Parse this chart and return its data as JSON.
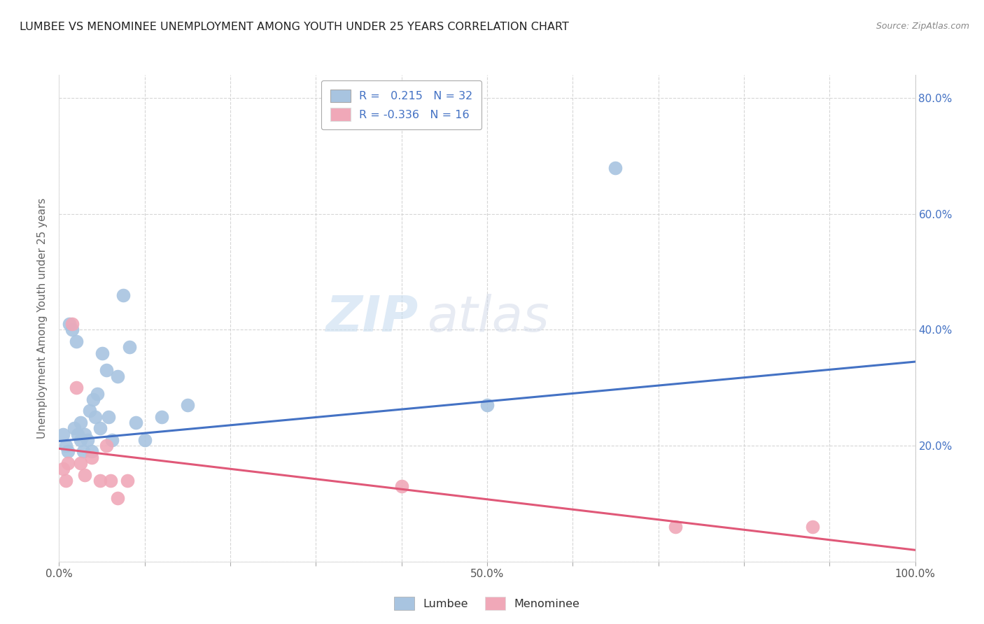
{
  "title": "LUMBEE VS MENOMINEE UNEMPLOYMENT AMONG YOUTH UNDER 25 YEARS CORRELATION CHART",
  "source": "Source: ZipAtlas.com",
  "ylabel": "Unemployment Among Youth under 25 years",
  "xlim": [
    0.0,
    1.0
  ],
  "ylim": [
    0.0,
    0.84
  ],
  "lumbee_R": 0.215,
  "lumbee_N": 32,
  "menominee_R": -0.336,
  "menominee_N": 16,
  "lumbee_color": "#a8c4e0",
  "menominee_color": "#f0a8b8",
  "lumbee_line_color": "#4472c4",
  "menominee_line_color": "#e05878",
  "watermark_zip": "ZIP",
  "watermark_atlas": "atlas",
  "lumbee_x": [
    0.005,
    0.008,
    0.01,
    0.012,
    0.015,
    0.018,
    0.02,
    0.022,
    0.025,
    0.025,
    0.028,
    0.03,
    0.033,
    0.036,
    0.038,
    0.04,
    0.042,
    0.045,
    0.048,
    0.05,
    0.055,
    0.058,
    0.062,
    0.068,
    0.075,
    0.082,
    0.09,
    0.1,
    0.12,
    0.15,
    0.5,
    0.65
  ],
  "lumbee_y": [
    0.22,
    0.2,
    0.19,
    0.41,
    0.4,
    0.23,
    0.38,
    0.22,
    0.21,
    0.24,
    0.19,
    0.22,
    0.21,
    0.26,
    0.19,
    0.28,
    0.25,
    0.29,
    0.23,
    0.36,
    0.33,
    0.25,
    0.21,
    0.32,
    0.46,
    0.37,
    0.24,
    0.21,
    0.25,
    0.27,
    0.27,
    0.68
  ],
  "menominee_x": [
    0.005,
    0.008,
    0.01,
    0.015,
    0.02,
    0.025,
    0.03,
    0.038,
    0.048,
    0.055,
    0.06,
    0.068,
    0.08,
    0.4,
    0.72,
    0.88
  ],
  "menominee_y": [
    0.16,
    0.14,
    0.17,
    0.41,
    0.3,
    0.17,
    0.15,
    0.18,
    0.14,
    0.2,
    0.14,
    0.11,
    0.14,
    0.13,
    0.06,
    0.06
  ],
  "background_color": "#ffffff",
  "grid_color": "#cccccc",
  "lumbee_line_x0": 0.0,
  "lumbee_line_x1": 1.0,
  "lumbee_line_y0": 0.208,
  "lumbee_line_y1": 0.345,
  "menominee_line_x0": 0.0,
  "menominee_line_x1": 1.0,
  "menominee_line_y0": 0.195,
  "menominee_line_y1": 0.02
}
